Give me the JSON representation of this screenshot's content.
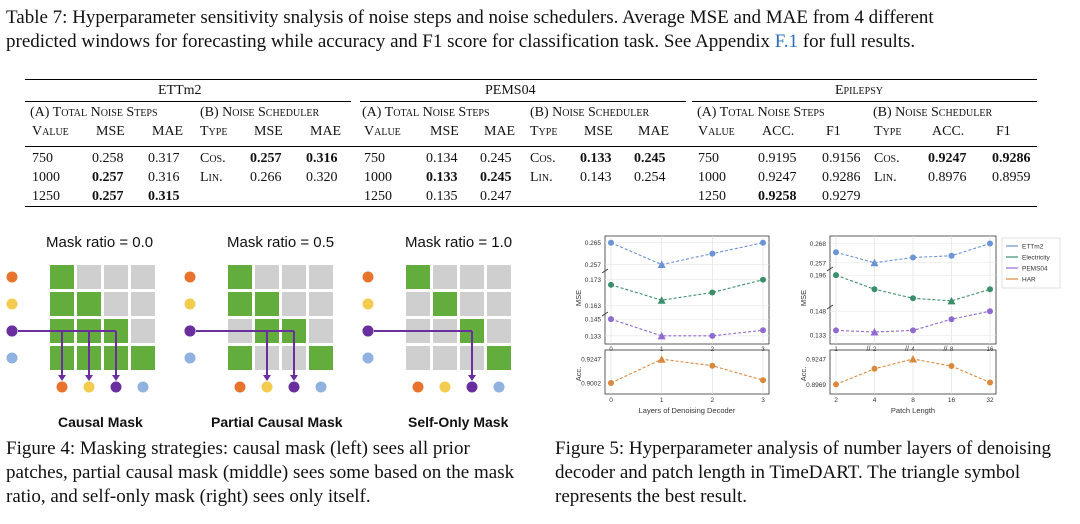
{
  "table": {
    "caption_prefix": "Table 7: Hyperparameter sensitivity snalysis of noise steps and noise schedulers. Average MSE and MAE from 4 different",
    "caption_line2_pre": "predicted windows for forecasting while accuracy and F1 score for classification task. See Appendix ",
    "caption_link": "F.1",
    "caption_line2_post": " for full results.",
    "groups": [
      "ETTm2",
      "PEMS04",
      "Epilepsy"
    ],
    "subheads": [
      "(A) Total Noise Steps",
      "(B) Noise Scheduler"
    ],
    "cols_forecast_a": [
      "Value",
      "MSE",
      "MAE"
    ],
    "cols_forecast_b": [
      "Type",
      "MSE",
      "MAE"
    ],
    "cols_class_a": [
      "Value",
      "ACC.",
      "F1"
    ],
    "cols_class_b": [
      "Type",
      "ACC.",
      "F1"
    ],
    "ettm2_a": [
      [
        "750",
        "0.258",
        "0.317"
      ],
      [
        "1000",
        "0.257",
        "0.316"
      ],
      [
        "1250",
        "0.257",
        "0.315"
      ]
    ],
    "ettm2_b": [
      [
        "Cos.",
        "0.257",
        "0.316"
      ],
      [
        "Lin.",
        "0.266",
        "0.320"
      ]
    ],
    "pems_a": [
      [
        "750",
        "0.134",
        "0.245"
      ],
      [
        "1000",
        "0.133",
        "0.245"
      ],
      [
        "1250",
        "0.135",
        "0.247"
      ]
    ],
    "pems_b": [
      [
        "Cos.",
        "0.133",
        "0.245"
      ],
      [
        "Lin.",
        "0.143",
        "0.254"
      ]
    ],
    "epi_a": [
      [
        "750",
        "0.9195",
        "0.9156"
      ],
      [
        "1000",
        "0.9247",
        "0.9286"
      ],
      [
        "1250",
        "0.9258",
        "0.9279"
      ]
    ],
    "epi_b": [
      [
        "Cos.",
        "0.9247",
        "0.9286"
      ],
      [
        "Lin.",
        "0.8976",
        "0.8959"
      ]
    ]
  },
  "fig4": {
    "titles": [
      "Mask ratio = 0.0",
      "Mask ratio = 0.5",
      "Mask ratio = 1.0"
    ],
    "labels": [
      "Causal Mask",
      "Partial Causal Mask",
      "Self-Only Mask"
    ],
    "caption": "Figure 4: Masking strategies: causal mask (left) sees all prior patches, partial causal mask (middle) sees some based on the mask ratio, and self-only mask (right) sees only itself."
  },
  "fig5": {
    "caption": "Figure 5: Hyperparameter analysis of number layers of denoising decoder and patch length in TimeDART. The triangle symbol represents the best result.",
    "colors": {
      "ettm2": "#6b93d6",
      "electricity": "#3a8f6a",
      "pems04": "#8f6ad0",
      "har": "#d9883e"
    },
    "chart_data": [
      {
        "type": "line",
        "xlabel": "Layers of Denoising Decoder",
        "ylabel_top": "MSE",
        "ylabel_bottom": "Acc.",
        "categories": [
          "0",
          "1",
          "2",
          "3"
        ],
        "yticks_top": [
          "0.265",
          "0.257",
          "0.173",
          "0.163",
          "0.145",
          "0.133"
        ],
        "yticks_bottom": [
          "0.9247",
          "0.9002"
        ],
        "series": [
          {
            "name": "ETTm2",
            "values": [
              0.265,
              0.257,
              0.261,
              0.265
            ],
            "best_index": 1
          },
          {
            "name": "Electricity",
            "values": [
              0.171,
              0.165,
              0.168,
              0.173
            ],
            "best_index": 1
          },
          {
            "name": "PEMS04",
            "values": [
              0.145,
              0.133,
              0.133,
              0.137
            ],
            "best_index": 1
          },
          {
            "name": "HAR",
            "values": [
              0.9002,
              0.9247,
              0.918,
              0.903
            ],
            "best_index": 1
          }
        ]
      },
      {
        "type": "line",
        "xlabel": "Patch Length",
        "ylabel_top": "MSE",
        "ylabel_bottom": "Acc.",
        "categories": [
          "2",
          "4",
          "8",
          "16",
          "32"
        ],
        "categories_top": [
          "1",
          "2",
          "4",
          "8",
          "16"
        ],
        "yticks_top": [
          "0.268",
          "0.257",
          "0.196",
          "0.148",
          "0.133"
        ],
        "yticks_bottom": [
          "0.9247",
          "0.8969"
        ],
        "legend": [
          "ETTm2",
          "Electricity",
          "PEMS04",
          "HAR"
        ],
        "series": [
          {
            "name": "ETTm2",
            "values": [
              0.263,
              0.257,
              0.26,
              0.261,
              0.268
            ],
            "best_index": 1
          },
          {
            "name": "Electricity",
            "values": [
              0.196,
              0.185,
              0.178,
              0.176,
              0.185
            ],
            "best_index": 3
          },
          {
            "name": "PEMS04",
            "values": [
              0.136,
              0.135,
              0.136,
              0.143,
              0.148
            ],
            "best_index": 1
          },
          {
            "name": "HAR",
            "values": [
              0.8969,
              0.914,
              0.9247,
              0.917,
              0.899
            ],
            "best_index": 2
          }
        ]
      }
    ]
  }
}
